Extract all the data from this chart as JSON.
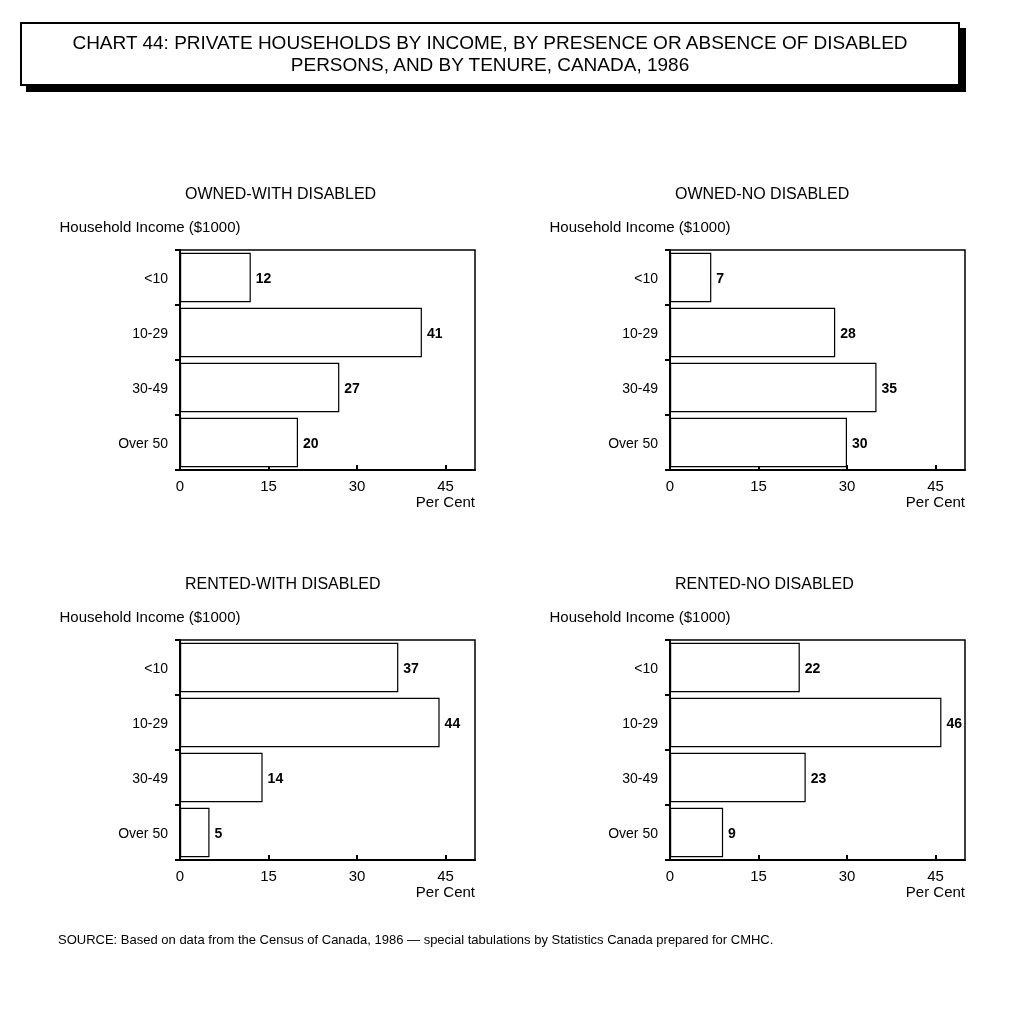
{
  "chart_data": [
    {
      "type": "other",
      "title": "CHART 44: PRIVATE HOUSEHOLDS BY INCOME, BY PRESENCE OR ABSENCE OF DISABLED PERSONS, AND BY TENURE, CANADA, 1986"
    },
    {
      "type": "bar",
      "orientation": "horizontal",
      "title": "OWNED-WITH DISABLED",
      "ylabel": "Household Income ($1000)",
      "xlabel": "Per Cent",
      "categories": [
        "<10",
        "10-29",
        "30-49",
        "Over 50"
      ],
      "values": [
        12,
        41,
        27,
        20
      ],
      "color": "#ffffff",
      "xlim": [
        0,
        50
      ],
      "xticks": [
        0,
        15,
        30,
        45
      ],
      "data_labels": true
    },
    {
      "type": "bar",
      "orientation": "horizontal",
      "title": "OWNED-NO DISABLED",
      "ylabel": "Household Income ($1000)",
      "xlabel": "Per Cent",
      "categories": [
        "<10",
        "10-29",
        "30-49",
        "Over 50"
      ],
      "values": [
        7,
        28,
        35,
        30
      ],
      "color": "#ffffff",
      "xlim": [
        0,
        50
      ],
      "xticks": [
        0,
        15,
        30,
        45
      ],
      "data_labels": true
    },
    {
      "type": "bar",
      "orientation": "horizontal",
      "title": "RENTED-WITH DISABLED",
      "ylabel": "Household Income ($1000)",
      "xlabel": "Per Cent",
      "categories": [
        "<10",
        "10-29",
        "30-49",
        "Over 50"
      ],
      "values": [
        37,
        44,
        14,
        5
      ],
      "color": "#ffffff",
      "xlim": [
        0,
        50
      ],
      "xticks": [
        0,
        15,
        30,
        45
      ],
      "data_labels": true
    },
    {
      "type": "bar",
      "orientation": "horizontal",
      "title": "RENTED-NO DISABLED",
      "ylabel": "Household Income ($1000)",
      "xlabel": "Per Cent",
      "categories": [
        "<10",
        "10-29",
        "30-49",
        "Over 50"
      ],
      "values": [
        22,
        46,
        23,
        9
      ],
      "color": "#ffffff",
      "xlim": [
        0,
        50
      ],
      "xticks": [
        0,
        15,
        30,
        45
      ],
      "data_labels": true
    },
    {
      "type": "other",
      "annotations": [
        "SOURCE: Based on data from the Census of Canada, 1986 — special tabulations by Statistics Canada prepared for CMHC."
      ]
    }
  ]
}
